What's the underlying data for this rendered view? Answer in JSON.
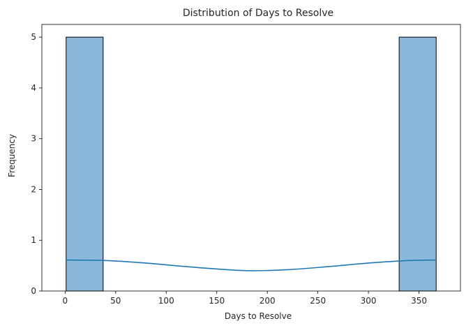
{
  "chart_data": {
    "type": "bar",
    "title": "Distribution of Days to Resolve",
    "xlabel": "Days to Resolve",
    "ylabel": "Frequency",
    "bins": [
      {
        "start": 1,
        "end": 37.6,
        "count": 5
      },
      {
        "start": 37.6,
        "end": 74.2,
        "count": 0
      },
      {
        "start": 74.2,
        "end": 110.8,
        "count": 0
      },
      {
        "start": 110.8,
        "end": 147.4,
        "count": 0
      },
      {
        "start": 147.4,
        "end": 184.0,
        "count": 0
      },
      {
        "start": 184.0,
        "end": 220.6,
        "count": 0
      },
      {
        "start": 220.6,
        "end": 257.2,
        "count": 0
      },
      {
        "start": 257.2,
        "end": 293.8,
        "count": 0
      },
      {
        "start": 293.8,
        "end": 330.4,
        "count": 0
      },
      {
        "start": 330.4,
        "end": 367,
        "count": 5
      }
    ],
    "kde": {
      "x": [
        1,
        40,
        80,
        120,
        160,
        184,
        220,
        260,
        300,
        340,
        367
      ],
      "y": [
        0.61,
        0.6,
        0.55,
        0.48,
        0.42,
        0.4,
        0.42,
        0.48,
        0.55,
        0.6,
        0.61
      ]
    },
    "xticks": [
      0,
      50,
      100,
      150,
      200,
      250,
      300,
      350
    ],
    "yticks": [
      0,
      1,
      2,
      3,
      4,
      5
    ],
    "xlim": [
      -23,
      391
    ],
    "ylim": [
      0,
      5.25
    ],
    "grid": false,
    "colors": {
      "bar_fill": "#8bb8da",
      "bar_edge": "#000000",
      "kde_line": "#1f77b4"
    }
  }
}
